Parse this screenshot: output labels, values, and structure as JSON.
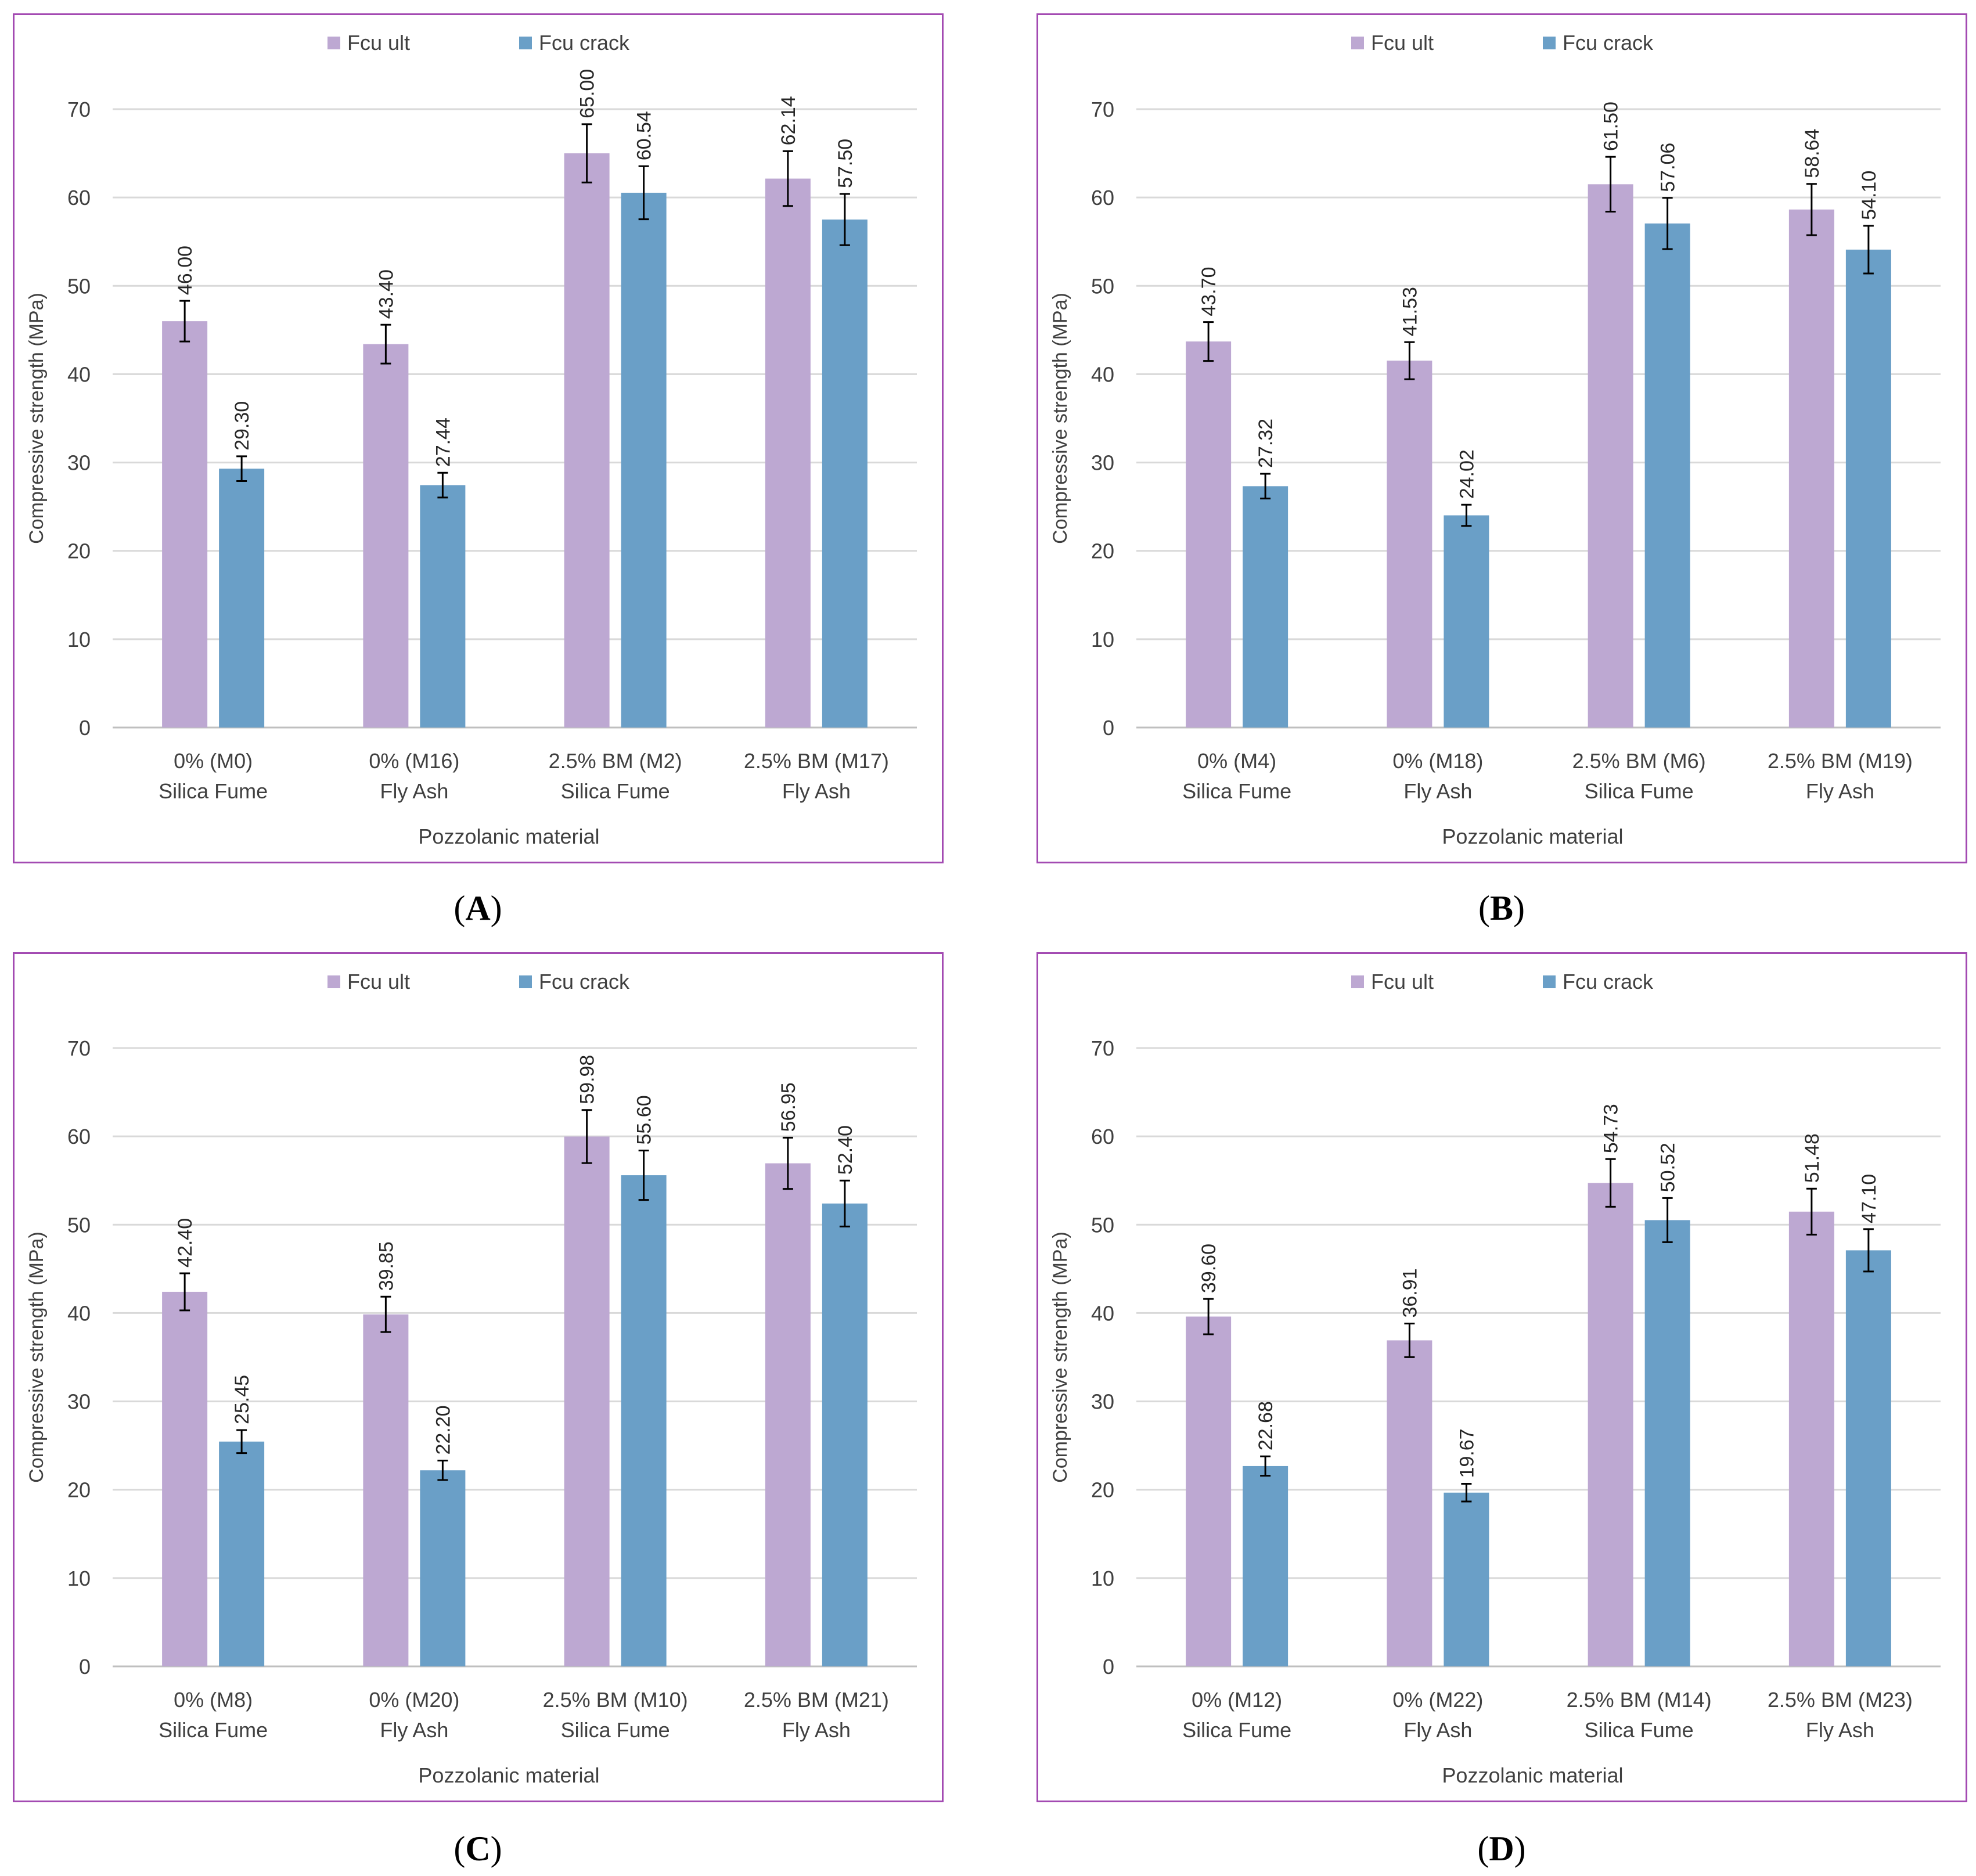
{
  "colors": {
    "ult": "#bda8d2",
    "crack": "#6a9fc7",
    "frame": "#a34ab2",
    "grid": "#d9d9d9",
    "text": "#404040"
  },
  "captions": [
    "A",
    "B",
    "C",
    "D"
  ],
  "chart_data": [
    {
      "type": "bar",
      "panel": "A",
      "ylabel": "Compressive  strength (MPa)",
      "xlabel": "Pozzolanic material",
      "ylim": [
        0,
        70
      ],
      "yticks": [
        "0",
        "10",
        "20",
        "30",
        "40",
        "50",
        "60",
        "70"
      ],
      "grid": true,
      "legend": "top-center",
      "categories": [
        [
          "0% (M0)",
          "Silica Fume"
        ],
        [
          "0%  (M16)",
          "Fly Ash"
        ],
        [
          "2.5% BM (M2)",
          "Silica Fume"
        ],
        [
          "2.5% BM (M17)",
          "Fly Ash"
        ]
      ],
      "series": [
        {
          "name": "Fcu ult",
          "values": [
            46.0,
            43.4,
            65.0,
            62.14
          ],
          "labels": [
            "46.00",
            "43.40",
            "65.00",
            "62.14"
          ],
          "errors": [
            2.3,
            2.2,
            3.3,
            3.1
          ]
        },
        {
          "name": "Fcu crack",
          "values": [
            29.3,
            27.44,
            60.54,
            57.5
          ],
          "labels": [
            "29.30",
            "27.44",
            "60.54",
            "57.50"
          ],
          "errors": [
            1.4,
            1.4,
            3.0,
            2.9
          ]
        }
      ]
    },
    {
      "type": "bar",
      "panel": "B",
      "ylabel": "Compressive  strength (MPa)",
      "xlabel": "Pozzolanic material",
      "ylim": [
        0,
        70
      ],
      "yticks": [
        "0",
        "10",
        "20",
        "30",
        "40",
        "50",
        "60",
        "70"
      ],
      "grid": true,
      "legend": "top-center",
      "categories": [
        [
          "0% (M4)",
          "Silica Fume"
        ],
        [
          "0%  (M18)",
          "Fly Ash"
        ],
        [
          "2.5% BM (M6)",
          "Silica Fume"
        ],
        [
          "2.5% BM (M19)",
          "Fly Ash"
        ]
      ],
      "series": [
        {
          "name": "Fcu ult",
          "values": [
            43.7,
            41.53,
            61.5,
            58.64
          ],
          "labels": [
            "43.70",
            "41.53",
            "61.50",
            "58.64"
          ],
          "errors": [
            2.2,
            2.1,
            3.1,
            2.9
          ]
        },
        {
          "name": "Fcu crack",
          "values": [
            27.32,
            24.02,
            57.06,
            54.1
          ],
          "labels": [
            "27.32",
            "24.02",
            "57.06",
            "54.10"
          ],
          "errors": [
            1.4,
            1.2,
            2.9,
            2.7
          ]
        }
      ]
    },
    {
      "type": "bar",
      "panel": "C",
      "ylabel": "Compressive  strength (MPa)",
      "xlabel": "Pozzolanic material",
      "ylim": [
        0,
        70
      ],
      "yticks": [
        "0",
        "10",
        "20",
        "30",
        "40",
        "50",
        "60",
        "70"
      ],
      "grid": true,
      "legend": "top-center",
      "categories": [
        [
          "0% (M8)",
          "Silica Fume"
        ],
        [
          "0%  (M20)",
          "Fly Ash"
        ],
        [
          "2.5% BM (M10)",
          "Silica Fume"
        ],
        [
          "2.5% BM (M21)",
          "Fly Ash"
        ]
      ],
      "series": [
        {
          "name": "Fcu ult",
          "values": [
            42.4,
            39.85,
            59.98,
            56.95
          ],
          "labels": [
            "42.40",
            "39.85",
            "59.98",
            "56.95"
          ],
          "errors": [
            2.1,
            2.0,
            3.0,
            2.9
          ]
        },
        {
          "name": "Fcu crack",
          "values": [
            25.45,
            22.2,
            55.6,
            52.4
          ],
          "labels": [
            "25.45",
            "22.20",
            "55.60",
            "52.40"
          ],
          "errors": [
            1.3,
            1.1,
            2.8,
            2.6
          ]
        }
      ]
    },
    {
      "type": "bar",
      "panel": "D",
      "ylabel": "Compressive  strength (MPa)",
      "xlabel": "Pozzolanic material",
      "ylim": [
        0,
        70
      ],
      "yticks": [
        "0",
        "10",
        "20",
        "30",
        "40",
        "50",
        "60",
        "70"
      ],
      "grid": true,
      "legend": "top-center",
      "categories": [
        [
          "0% (M12)",
          "Silica Fume"
        ],
        [
          "0%  (M22)",
          "Fly Ash"
        ],
        [
          "2.5% BM (M14)",
          "Silica Fume"
        ],
        [
          "2.5% BM (M23)",
          "Fly Ash"
        ]
      ],
      "series": [
        {
          "name": "Fcu ult",
          "values": [
            39.6,
            36.91,
            54.73,
            51.48
          ],
          "labels": [
            "39.60",
            "36.91",
            "54.73",
            "51.48"
          ],
          "errors": [
            2.0,
            1.9,
            2.7,
            2.6
          ]
        },
        {
          "name": "Fcu crack",
          "values": [
            22.68,
            19.67,
            50.52,
            47.1
          ],
          "labels": [
            "22.68",
            "19.67",
            "50.52",
            "47.10"
          ],
          "errors": [
            1.1,
            1.0,
            2.5,
            2.4
          ]
        }
      ]
    }
  ]
}
